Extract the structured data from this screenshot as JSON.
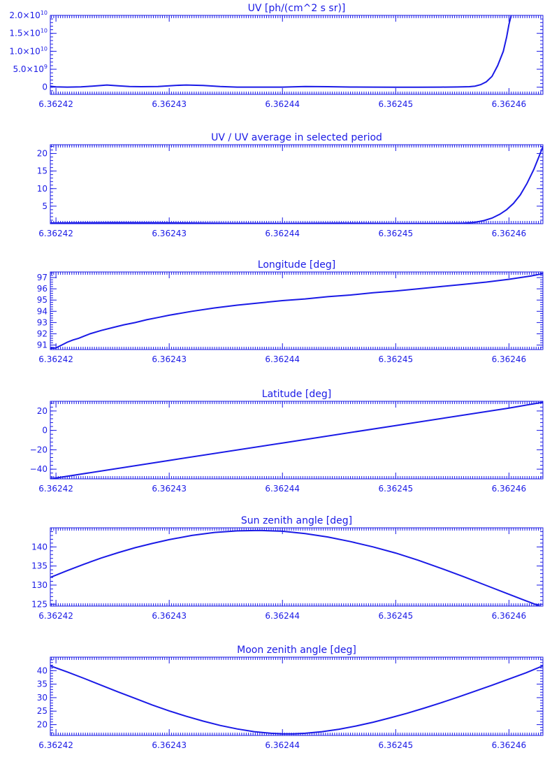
{
  "chart_data": [
    {
      "type": "line",
      "title": "UV [ph/(cm^2 s sr)]",
      "xlim": [
        6.3624195,
        6.362463
      ],
      "ylim": [
        -2000000000.0,
        20000000000.0
      ],
      "x_ticks": [
        "6.36242",
        "6.36243",
        "6.36244",
        "6.36245",
        "6.36246"
      ],
      "x_tick_values": [
        6.36242,
        6.36243,
        6.36244,
        6.36245,
        6.36246
      ],
      "y_ticks": [
        {
          "value": 0,
          "mantissa": "0",
          "exp": ""
        },
        {
          "value": 5000000000.0,
          "mantissa": "5.0×10",
          "exp": "9"
        },
        {
          "value": 10000000000.0,
          "mantissa": "1.0×10",
          "exp": "10"
        },
        {
          "value": 15000000000.0,
          "mantissa": "1.5×10",
          "exp": "10"
        },
        {
          "value": 20000000000.0,
          "mantissa": "2.0×10",
          "exp": "10"
        }
      ],
      "x": [
        6.3624195,
        6.36242,
        6.362421,
        6.3624222,
        6.3624232,
        6.3624245,
        6.3624255,
        6.3624265,
        6.3624275,
        6.362429,
        6.3624305,
        6.3624315,
        6.362433,
        6.3624345,
        6.362436,
        6.362438,
        6.36244,
        6.362442,
        6.362444,
        6.362446,
        6.362448,
        6.36245,
        6.362452,
        6.362454,
        6.3624555,
        6.3624565,
        6.362457,
        6.3624575,
        6.362458,
        6.3624585,
        6.362459,
        6.3624595,
        6.3624598,
        6.36246,
        6.3624602
      ],
      "y": [
        250000000.0,
        100000000.0,
        20000000.0,
        100000000.0,
        300000000.0,
        600000000.0,
        400000000.0,
        200000000.0,
        150000000.0,
        200000000.0,
        500000000.0,
        600000000.0,
        500000000.0,
        200000000.0,
        30000000.0,
        20000000.0,
        30000000.0,
        200000000.0,
        150000000.0,
        50000000.0,
        20000000.0,
        10000000.0,
        10000000.0,
        20000000.0,
        60000000.0,
        150000000.0,
        300000000.0,
        700000000.0,
        1500000000.0,
        3000000000.0,
        6000000000.0,
        10000000000.0,
        14000000000.0,
        17500000000.0,
        20000000000.0
      ]
    },
    {
      "type": "line",
      "title": "UV / UV average in selected period",
      "xlim": [
        6.3624195,
        6.362463
      ],
      "ylim": [
        0,
        22.5
      ],
      "x_ticks": [
        "6.36242",
        "6.36243",
        "6.36244",
        "6.36245",
        "6.36246"
      ],
      "x_tick_values": [
        6.36242,
        6.36243,
        6.36244,
        6.36245,
        6.36246
      ],
      "y_ticks": [
        {
          "value": 5,
          "mantissa": "5",
          "exp": ""
        },
        {
          "value": 10,
          "mantissa": "10",
          "exp": ""
        },
        {
          "value": 15,
          "mantissa": "15",
          "exp": ""
        },
        {
          "value": 20,
          "mantissa": "20",
          "exp": ""
        }
      ],
      "x": [
        6.3624195,
        6.362425,
        6.36243,
        6.362435,
        6.36244,
        6.362445,
        6.36245,
        6.362454,
        6.362456,
        6.362457,
        6.3624578,
        6.3624585,
        6.3624592,
        6.3624598,
        6.3624604,
        6.362461,
        6.3624616,
        6.3624622,
        6.3624627,
        6.362463
      ],
      "y": [
        0.2,
        0.3,
        0.25,
        0.1,
        0.05,
        0.15,
        0.05,
        0.05,
        0.15,
        0.4,
        0.9,
        1.6,
        2.7,
        4.0,
        5.8,
        8.2,
        11.5,
        15.5,
        19.5,
        22.0
      ]
    },
    {
      "type": "line",
      "title": "Longitude [deg]",
      "xlim": [
        6.3624195,
        6.362463
      ],
      "ylim": [
        90.6,
        97.5
      ],
      "x_ticks": [
        "6.36242",
        "6.36243",
        "6.36244",
        "6.36245",
        "6.36246"
      ],
      "x_tick_values": [
        6.36242,
        6.36243,
        6.36244,
        6.36245,
        6.36246
      ],
      "y_ticks": [
        {
          "value": 91,
          "mantissa": "91",
          "exp": ""
        },
        {
          "value": 92,
          "mantissa": "92",
          "exp": ""
        },
        {
          "value": 93,
          "mantissa": "93",
          "exp": ""
        },
        {
          "value": 94,
          "mantissa": "94",
          "exp": ""
        },
        {
          "value": 95,
          "mantissa": "95",
          "exp": ""
        },
        {
          "value": 96,
          "mantissa": "96",
          "exp": ""
        },
        {
          "value": 97,
          "mantissa": "97",
          "exp": ""
        }
      ],
      "x": [
        6.3624195,
        6.36242,
        6.3624205,
        6.362421,
        6.3624215,
        6.362422,
        6.3624225,
        6.362423,
        6.362424,
        6.362425,
        6.362426,
        6.362427,
        6.362428,
        6.362429,
        6.36243,
        6.362432,
        6.362434,
        6.362436,
        6.362438,
        6.36244,
        6.362442,
        6.362444,
        6.362446,
        6.362448,
        6.36245,
        6.362452,
        6.362454,
        6.362456,
        6.362458,
        6.36246,
        6.362462,
        6.362463
      ],
      "y": [
        90.7,
        90.75,
        91.0,
        91.25,
        91.45,
        91.6,
        91.8,
        92.0,
        92.3,
        92.55,
        92.8,
        93.0,
        93.25,
        93.45,
        93.65,
        94.0,
        94.3,
        94.55,
        94.75,
        94.95,
        95.1,
        95.3,
        95.45,
        95.65,
        95.8,
        96.0,
        96.2,
        96.4,
        96.6,
        96.85,
        97.15,
        97.35
      ]
    },
    {
      "type": "line",
      "title": "Latitude [deg]",
      "xlim": [
        6.3624195,
        6.362463
      ],
      "ylim": [
        -50,
        30
      ],
      "x_ticks": [
        "6.36242",
        "6.36243",
        "6.36244",
        "6.36245",
        "6.36246"
      ],
      "x_tick_values": [
        6.36242,
        6.36243,
        6.36244,
        6.36245,
        6.36246
      ],
      "y_ticks": [
        {
          "value": -40,
          "mantissa": "−40",
          "exp": ""
        },
        {
          "value": -20,
          "mantissa": "−20",
          "exp": ""
        },
        {
          "value": 0,
          "mantissa": "0",
          "exp": ""
        },
        {
          "value": 20,
          "mantissa": "20",
          "exp": ""
        }
      ],
      "x": [
        6.3624195,
        6.36243,
        6.36244,
        6.36245,
        6.36246,
        6.362463
      ],
      "y": [
        -50,
        -31,
        -13,
        5,
        23,
        29
      ]
    },
    {
      "type": "line",
      "title": "Sun zenith angle [deg]",
      "xlim": [
        6.3624195,
        6.362463
      ],
      "ylim": [
        124.5,
        145
      ],
      "x_ticks": [
        "6.36242",
        "6.36243",
        "6.36244",
        "6.36245",
        "6.36246"
      ],
      "x_tick_values": [
        6.36242,
        6.36243,
        6.36244,
        6.36245,
        6.36246
      ],
      "y_ticks": [
        {
          "value": 125,
          "mantissa": "125",
          "exp": ""
        },
        {
          "value": 130,
          "mantissa": "130",
          "exp": ""
        },
        {
          "value": 135,
          "mantissa": "135",
          "exp": ""
        },
        {
          "value": 140,
          "mantissa": "140",
          "exp": ""
        }
      ],
      "x": [
        6.3624195,
        6.362421,
        6.3624225,
        6.362424,
        6.3624255,
        6.362427,
        6.3624285,
        6.36243,
        6.362432,
        6.362434,
        6.362436,
        6.362438,
        6.36244,
        6.362442,
        6.362444,
        6.362446,
        6.362448,
        6.36245,
        6.362452,
        6.362454,
        6.362456,
        6.362458,
        6.36246,
        6.3624615,
        6.362463
      ],
      "y": [
        132.0,
        133.8,
        135.5,
        137.1,
        138.5,
        139.8,
        140.9,
        141.9,
        143.0,
        143.8,
        144.2,
        144.3,
        144.1,
        143.5,
        142.6,
        141.4,
        140.0,
        138.4,
        136.5,
        134.4,
        132.2,
        129.9,
        127.6,
        125.9,
        124.2
      ]
    },
    {
      "type": "line",
      "title": "Moon zenith angle [deg]",
      "xlim": [
        6.3624195,
        6.362463
      ],
      "ylim": [
        16,
        45
      ],
      "x_ticks": [
        "6.36242",
        "6.36243",
        "6.36244",
        "6.36245",
        "6.36246"
      ],
      "x_tick_values": [
        6.36242,
        6.36243,
        6.36244,
        6.36245,
        6.36246
      ],
      "y_ticks": [
        {
          "value": 20,
          "mantissa": "20",
          "exp": ""
        },
        {
          "value": 25,
          "mantissa": "25",
          "exp": ""
        },
        {
          "value": 30,
          "mantissa": "30",
          "exp": ""
        },
        {
          "value": 35,
          "mantissa": "35",
          "exp": ""
        },
        {
          "value": 40,
          "mantissa": "40",
          "exp": ""
        }
      ],
      "x": [
        6.3624195,
        6.362421,
        6.3624225,
        6.362424,
        6.3624255,
        6.362427,
        6.3624285,
        6.36243,
        6.3624315,
        6.362433,
        6.3624345,
        6.362436,
        6.3624375,
        6.362439,
        6.36244,
        6.362441,
        6.362442,
        6.3624435,
        6.362445,
        6.3624465,
        6.362448,
        6.3624495,
        6.362451,
        6.3624525,
        6.362454,
        6.3624555,
        6.362457,
        6.3624585,
        6.36246,
        6.3624615,
        6.362463
      ],
      "y": [
        41.8,
        39.5,
        37.1,
        34.6,
        32.1,
        29.7,
        27.3,
        25.1,
        23.1,
        21.3,
        19.7,
        18.4,
        17.4,
        16.8,
        16.6,
        16.6,
        16.8,
        17.4,
        18.3,
        19.5,
        20.9,
        22.5,
        24.2,
        26.1,
        28.1,
        30.2,
        32.4,
        34.6,
        36.9,
        39.2,
        41.8
      ]
    }
  ]
}
